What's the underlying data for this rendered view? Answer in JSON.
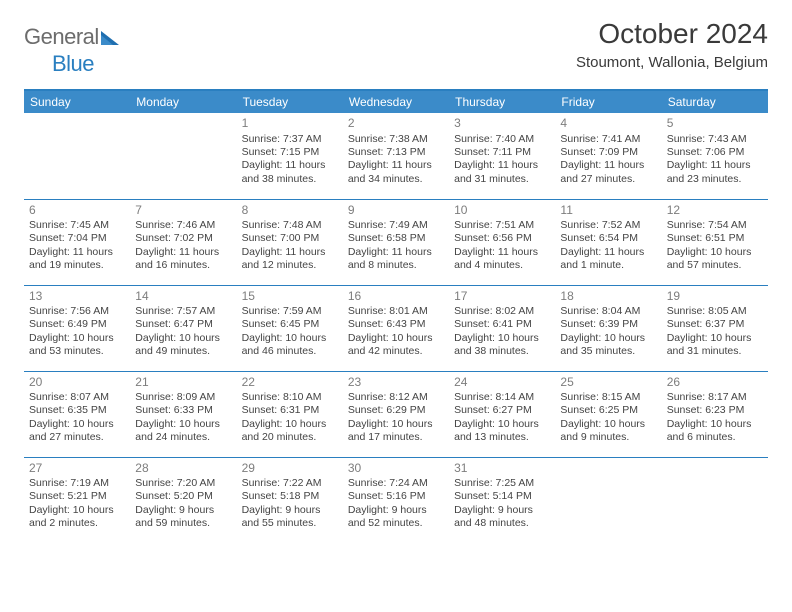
{
  "logo": {
    "text1": "General",
    "text2": "Blue"
  },
  "title": "October 2024",
  "location": "Stoumont, Wallonia, Belgium",
  "style": {
    "accent": "#3b8bc9",
    "rule": "#2a7fc0",
    "text": "#444444",
    "daynum": "#7d7d7d",
    "logo_gray": "#6c6c6c",
    "logo_blue": "#2a7fc0",
    "bg": "#ffffff"
  },
  "weekday_labels": [
    "Sunday",
    "Monday",
    "Tuesday",
    "Wednesday",
    "Thursday",
    "Friday",
    "Saturday"
  ],
  "weeks": [
    [
      null,
      null,
      {
        "n": "1",
        "sunrise": "7:37 AM",
        "sunset": "7:15 PM",
        "daylight": "11 hours and 38 minutes."
      },
      {
        "n": "2",
        "sunrise": "7:38 AM",
        "sunset": "7:13 PM",
        "daylight": "11 hours and 34 minutes."
      },
      {
        "n": "3",
        "sunrise": "7:40 AM",
        "sunset": "7:11 PM",
        "daylight": "11 hours and 31 minutes."
      },
      {
        "n": "4",
        "sunrise": "7:41 AM",
        "sunset": "7:09 PM",
        "daylight": "11 hours and 27 minutes."
      },
      {
        "n": "5",
        "sunrise": "7:43 AM",
        "sunset": "7:06 PM",
        "daylight": "11 hours and 23 minutes."
      }
    ],
    [
      {
        "n": "6",
        "sunrise": "7:45 AM",
        "sunset": "7:04 PM",
        "daylight": "11 hours and 19 minutes."
      },
      {
        "n": "7",
        "sunrise": "7:46 AM",
        "sunset": "7:02 PM",
        "daylight": "11 hours and 16 minutes."
      },
      {
        "n": "8",
        "sunrise": "7:48 AM",
        "sunset": "7:00 PM",
        "daylight": "11 hours and 12 minutes."
      },
      {
        "n": "9",
        "sunrise": "7:49 AM",
        "sunset": "6:58 PM",
        "daylight": "11 hours and 8 minutes."
      },
      {
        "n": "10",
        "sunrise": "7:51 AM",
        "sunset": "6:56 PM",
        "daylight": "11 hours and 4 minutes."
      },
      {
        "n": "11",
        "sunrise": "7:52 AM",
        "sunset": "6:54 PM",
        "daylight": "11 hours and 1 minute."
      },
      {
        "n": "12",
        "sunrise": "7:54 AM",
        "sunset": "6:51 PM",
        "daylight": "10 hours and 57 minutes."
      }
    ],
    [
      {
        "n": "13",
        "sunrise": "7:56 AM",
        "sunset": "6:49 PM",
        "daylight": "10 hours and 53 minutes."
      },
      {
        "n": "14",
        "sunrise": "7:57 AM",
        "sunset": "6:47 PM",
        "daylight": "10 hours and 49 minutes."
      },
      {
        "n": "15",
        "sunrise": "7:59 AM",
        "sunset": "6:45 PM",
        "daylight": "10 hours and 46 minutes."
      },
      {
        "n": "16",
        "sunrise": "8:01 AM",
        "sunset": "6:43 PM",
        "daylight": "10 hours and 42 minutes."
      },
      {
        "n": "17",
        "sunrise": "8:02 AM",
        "sunset": "6:41 PM",
        "daylight": "10 hours and 38 minutes."
      },
      {
        "n": "18",
        "sunrise": "8:04 AM",
        "sunset": "6:39 PM",
        "daylight": "10 hours and 35 minutes."
      },
      {
        "n": "19",
        "sunrise": "8:05 AM",
        "sunset": "6:37 PM",
        "daylight": "10 hours and 31 minutes."
      }
    ],
    [
      {
        "n": "20",
        "sunrise": "8:07 AM",
        "sunset": "6:35 PM",
        "daylight": "10 hours and 27 minutes."
      },
      {
        "n": "21",
        "sunrise": "8:09 AM",
        "sunset": "6:33 PM",
        "daylight": "10 hours and 24 minutes."
      },
      {
        "n": "22",
        "sunrise": "8:10 AM",
        "sunset": "6:31 PM",
        "daylight": "10 hours and 20 minutes."
      },
      {
        "n": "23",
        "sunrise": "8:12 AM",
        "sunset": "6:29 PM",
        "daylight": "10 hours and 17 minutes."
      },
      {
        "n": "24",
        "sunrise": "8:14 AM",
        "sunset": "6:27 PM",
        "daylight": "10 hours and 13 minutes."
      },
      {
        "n": "25",
        "sunrise": "8:15 AM",
        "sunset": "6:25 PM",
        "daylight": "10 hours and 9 minutes."
      },
      {
        "n": "26",
        "sunrise": "8:17 AM",
        "sunset": "6:23 PM",
        "daylight": "10 hours and 6 minutes."
      }
    ],
    [
      {
        "n": "27",
        "sunrise": "7:19 AM",
        "sunset": "5:21 PM",
        "daylight": "10 hours and 2 minutes."
      },
      {
        "n": "28",
        "sunrise": "7:20 AM",
        "sunset": "5:20 PM",
        "daylight": "9 hours and 59 minutes."
      },
      {
        "n": "29",
        "sunrise": "7:22 AM",
        "sunset": "5:18 PM",
        "daylight": "9 hours and 55 minutes."
      },
      {
        "n": "30",
        "sunrise": "7:24 AM",
        "sunset": "5:16 PM",
        "daylight": "9 hours and 52 minutes."
      },
      {
        "n": "31",
        "sunrise": "7:25 AM",
        "sunset": "5:14 PM",
        "daylight": "9 hours and 48 minutes."
      },
      null,
      null
    ]
  ]
}
